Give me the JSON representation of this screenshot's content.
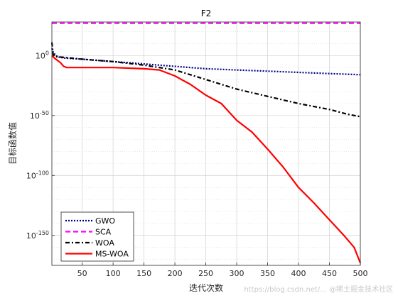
{
  "chart_data": {
    "type": "line",
    "title": "F2",
    "xlabel": "迭代次数",
    "ylabel": "目标函数值",
    "xlim": [
      1,
      500
    ],
    "ylim_log10": [
      -175,
      28
    ],
    "y_scale": "log",
    "x_ticks": [
      50,
      100,
      150,
      200,
      250,
      300,
      350,
      400,
      450,
      500
    ],
    "y_ticks": [
      {
        "exp": 0,
        "label": "10",
        "sup": "0"
      },
      {
        "exp": -50,
        "label": "10",
        "sup": "-50"
      },
      {
        "exp": -100,
        "label": "10",
        "sup": "-100"
      },
      {
        "exp": -150,
        "label": "10",
        "sup": "-150"
      }
    ],
    "grid": true,
    "legend_position": "bottom-left",
    "series": [
      {
        "name": "GWO",
        "color": "#00008B",
        "dash": "2,2",
        "width": 2.2,
        "x": [
          1,
          3,
          6,
          10,
          20,
          50,
          100,
          150,
          200,
          250,
          300,
          350,
          400,
          450,
          500
        ],
        "y_log10": [
          6,
          3,
          1,
          -1,
          -2,
          -3,
          -5,
          -7,
          -9,
          -11,
          -12,
          -13,
          -14,
          -15,
          -16
        ]
      },
      {
        "name": "SCA",
        "color": "#FF00FF",
        "dash": "7,4",
        "width": 2.2,
        "x": [
          1,
          500
        ],
        "y_log10": [
          27,
          27
        ]
      },
      {
        "name": "WOA",
        "color": "#000000",
        "dash": "6,3,2,3",
        "width": 2.2,
        "x": [
          1,
          3,
          6,
          10,
          30,
          50,
          100,
          150,
          200,
          250,
          300,
          350,
          400,
          450,
          480,
          500
        ],
        "y_log10": [
          11,
          1,
          -1,
          -1,
          -2,
          -3,
          -5,
          -8,
          -12,
          -20,
          -28,
          -34,
          -40,
          -45,
          -49,
          -51
        ]
      },
      {
        "name": "MS-WOA",
        "color": "#FF0000",
        "dash": "",
        "width": 2.2,
        "x": [
          1,
          5,
          10,
          15,
          20,
          25,
          50,
          100,
          150,
          175,
          200,
          225,
          250,
          275,
          300,
          325,
          350,
          375,
          400,
          425,
          450,
          475,
          490,
          500
        ],
        "y_log10": [
          0,
          -2,
          -4,
          -6,
          -9,
          -10,
          -10,
          -10,
          -11,
          -12,
          -17,
          -24,
          -33,
          -40,
          -54,
          -64,
          -78,
          -93,
          -110,
          -123,
          -137,
          -151,
          -160,
          -173
        ]
      }
    ]
  },
  "watermark": "https://blog.csdn.net/... @稀土掘金技术社区"
}
